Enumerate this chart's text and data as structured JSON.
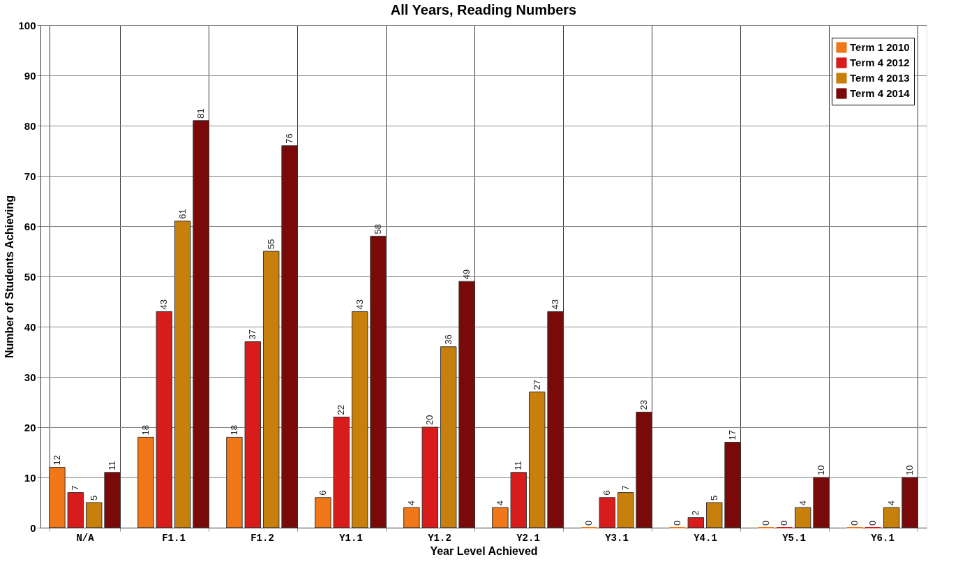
{
  "chart_data": {
    "type": "bar",
    "title": "All Years, Reading Numbers",
    "xlabel": "Year Level Achieved",
    "ylabel": "Number of Students Achieving",
    "categories": [
      "N/A",
      "F1.1",
      "F1.2",
      "Y1.1",
      "Y1.2",
      "Y2.1",
      "Y3.1",
      "Y4.1",
      "Y5.1",
      "Y6.1"
    ],
    "series": [
      {
        "name": "Term 1 2010",
        "color": "#f07818",
        "values": [
          12,
          18,
          18,
          6,
          4,
          4,
          0,
          0,
          0,
          0
        ]
      },
      {
        "name": "Term 4 2012",
        "color": "#d81c1c",
        "values": [
          7,
          43,
          37,
          22,
          20,
          11,
          6,
          2,
          0,
          0
        ]
      },
      {
        "name": "Term 4 2013",
        "color": "#c8800c",
        "values": [
          5,
          61,
          55,
          43,
          36,
          27,
          7,
          5,
          4,
          4
        ]
      },
      {
        "name": "Term 4 2014",
        "color": "#7a0a0a",
        "values": [
          11,
          81,
          76,
          58,
          49,
          43,
          23,
          17,
          10,
          10
        ]
      }
    ],
    "ylim": [
      0,
      100
    ],
    "yticks": [
      0,
      10,
      20,
      30,
      40,
      50,
      60,
      70,
      80,
      90,
      100
    ],
    "grid": true,
    "legend": "top right",
    "data_labels": true
  }
}
